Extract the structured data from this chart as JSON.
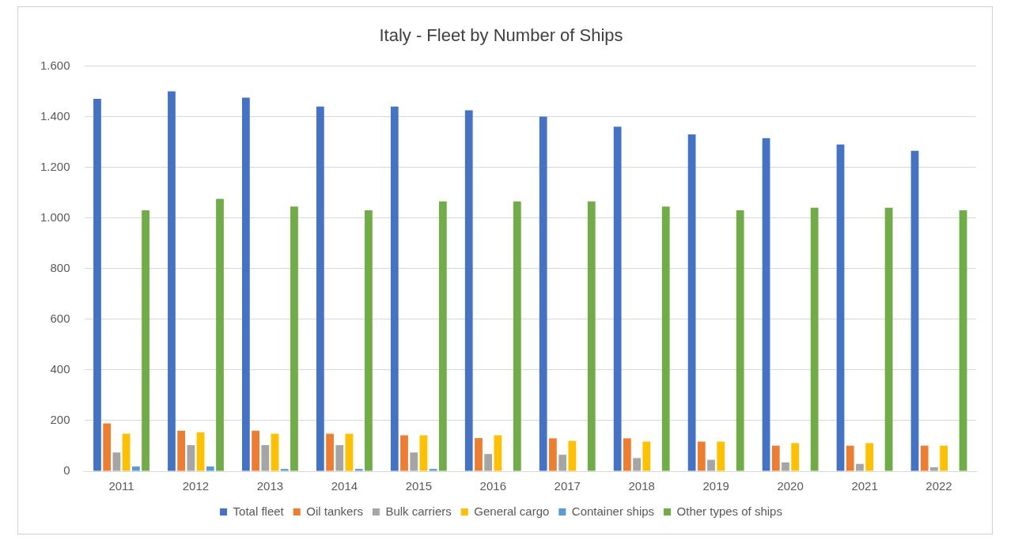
{
  "chart_data": {
    "type": "bar",
    "title": "Italy - Fleet by Number of Ships",
    "categories": [
      "2011",
      "2012",
      "2013",
      "2014",
      "2015",
      "2016",
      "2017",
      "2018",
      "2019",
      "2020",
      "2021",
      "2022"
    ],
    "series": [
      {
        "name": "Total fleet",
        "color": "#4472c4",
        "values": [
          1470,
          1500,
          1475,
          1440,
          1440,
          1425,
          1400,
          1360,
          1330,
          1315,
          1290,
          1265
        ]
      },
      {
        "name": "Oil tankers",
        "color": "#ed7d31",
        "values": [
          189,
          160,
          160,
          148,
          142,
          131,
          130,
          130,
          117,
          101,
          101,
          101
        ]
      },
      {
        "name": "Bulk carriers",
        "color": "#a5a5a5",
        "values": [
          74,
          103,
          103,
          103,
          74,
          68,
          65,
          52,
          45,
          35,
          29,
          16
        ]
      },
      {
        "name": "General cargo",
        "color": "#ffc000",
        "values": [
          148,
          154,
          148,
          148,
          142,
          142,
          120,
          117,
          117,
          111,
          111,
          101
        ]
      },
      {
        "name": "Container ships",
        "color": "#5b9bd5",
        "values": [
          19,
          19,
          9,
          9,
          9,
          0,
          0,
          0,
          0,
          0,
          0,
          0
        ]
      },
      {
        "name": "Other types of ships",
        "color": "#70ad47",
        "values": [
          1030,
          1075,
          1045,
          1030,
          1065,
          1065,
          1065,
          1045,
          1030,
          1040,
          1040,
          1030
        ]
      }
    ],
    "ylim": [
      0,
      1600
    ],
    "yticks": [
      0,
      {
        "value": 200,
        "label": "200"
      },
      {
        "value": 400,
        "label": "400"
      },
      {
        "value": 600,
        "label": "600"
      },
      {
        "value": 800,
        "label": "800"
      },
      {
        "value": 1000,
        "label": "1.000"
      },
      {
        "value": 1200,
        "label": "1.200"
      },
      {
        "value": 1400,
        "label": "1.400"
      },
      {
        "value": 1600,
        "label": "1.600"
      }
    ],
    "grid": "y",
    "legend": "bottom"
  }
}
